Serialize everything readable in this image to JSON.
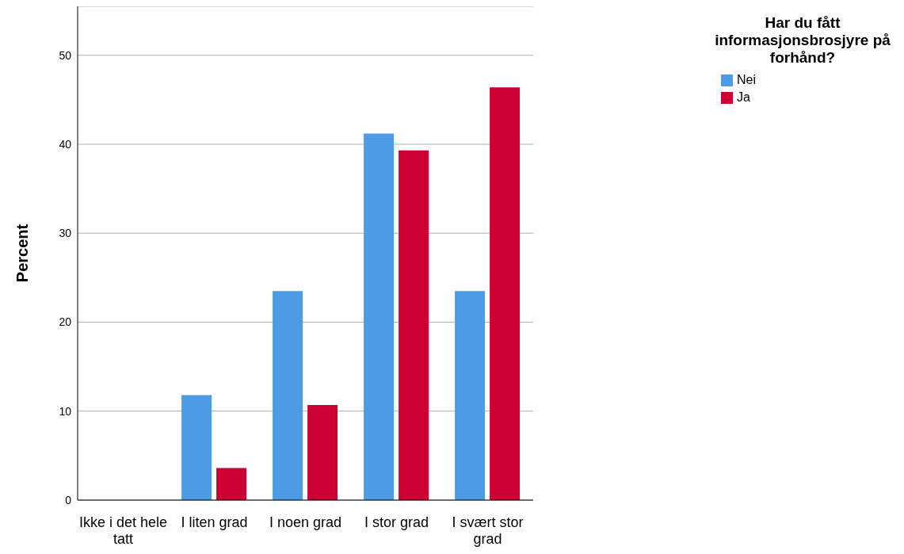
{
  "chart_data": {
    "type": "bar",
    "ylabel": "Percent",
    "legend_title": "Har du fått informasjonsbrosjyre på forhånd?",
    "categories": [
      "Ikke i det hele tatt",
      "I liten grad",
      "I noen grad",
      "I stor grad",
      "I svært stor grad"
    ],
    "series": [
      {
        "name": "Nei",
        "color": "#4c9be3",
        "values": [
          0,
          11.8,
          23.5,
          41.2,
          23.5
        ]
      },
      {
        "name": "Ja",
        "color": "#cc0033",
        "values": [
          0,
          3.6,
          10.7,
          39.3,
          46.4
        ]
      }
    ],
    "ylim": [
      0,
      55.5
    ],
    "yticks": [
      0,
      10,
      20,
      30,
      40,
      50
    ],
    "grid": "y",
    "legend": "top right"
  }
}
